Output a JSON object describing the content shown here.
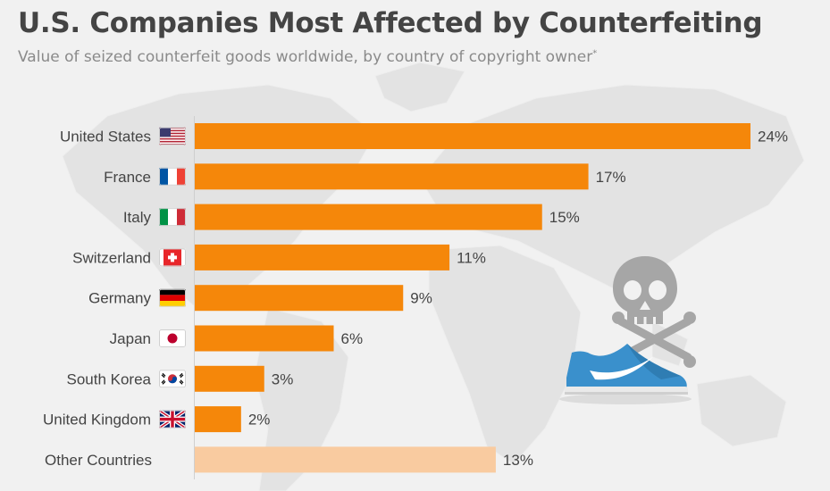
{
  "header": {
    "title": "U.S. Companies Most Affected by Counterfeiting",
    "subtitle": "Value of seized counterfeit goods worldwide, by country of copyright owner",
    "subtitle_mark": "*"
  },
  "colors": {
    "bar": "#f5870a",
    "bar_other": "#f9cba0",
    "label": "#444444",
    "background": "#f1f1f1",
    "map": "#e2e2e2"
  },
  "icons": {
    "skull": "skull-crossbones-icon",
    "sneaker": "sneaker-icon"
  },
  "chart_data": {
    "type": "bar",
    "orientation": "horizontal",
    "categories": [
      "United States",
      "France",
      "Italy",
      "Switzerland",
      "Germany",
      "Japan",
      "South Korea",
      "United Kingdom",
      "Other Countries"
    ],
    "values": [
      24,
      17,
      15,
      11,
      9,
      6,
      3,
      2,
      13
    ],
    "value_labels": [
      "24%",
      "17%",
      "15%",
      "11%",
      "9%",
      "6%",
      "3%",
      "2%",
      "13%"
    ],
    "flags": [
      "us-flag-icon",
      "france-flag-icon",
      "italy-flag-icon",
      "switzerland-flag-icon",
      "germany-flag-icon",
      "japan-flag-icon",
      "south-korea-flag-icon",
      "uk-flag-icon",
      ""
    ],
    "unit": "%",
    "xlim": [
      0,
      24
    ],
    "grid": false,
    "legend": "none"
  }
}
